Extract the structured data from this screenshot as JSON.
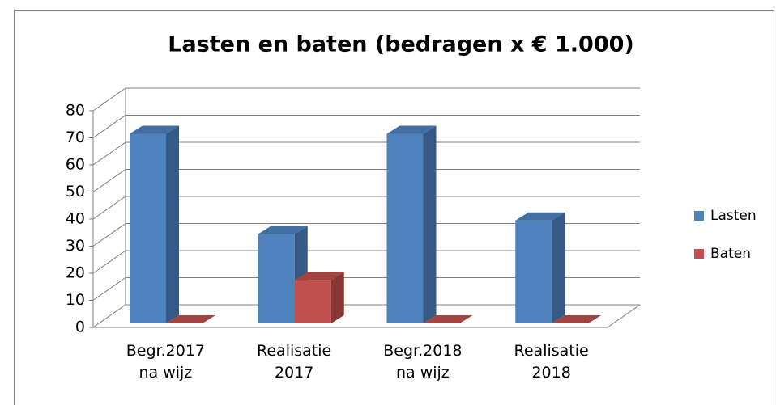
{
  "chart_data": {
    "type": "bar3d",
    "title": "Lasten en baten (bedragen x € 1.000)",
    "categories": [
      "Begr.2017\nna wijz",
      "Realisatie\n2017",
      "Begr.2018\nna wijz",
      "Realisatie\n2018"
    ],
    "series": [
      {
        "name": "Lasten",
        "color": "#4f81bd",
        "values": [
          70,
          33,
          70,
          38
        ]
      },
      {
        "name": "Baten",
        "color": "#c0504d",
        "values": [
          0,
          16,
          0,
          0
        ]
      }
    ],
    "ylim": [
      0,
      80
    ],
    "yticks": [
      0,
      10,
      20,
      30,
      40,
      50,
      60,
      70,
      80
    ],
    "grid": true,
    "legend": "right"
  }
}
